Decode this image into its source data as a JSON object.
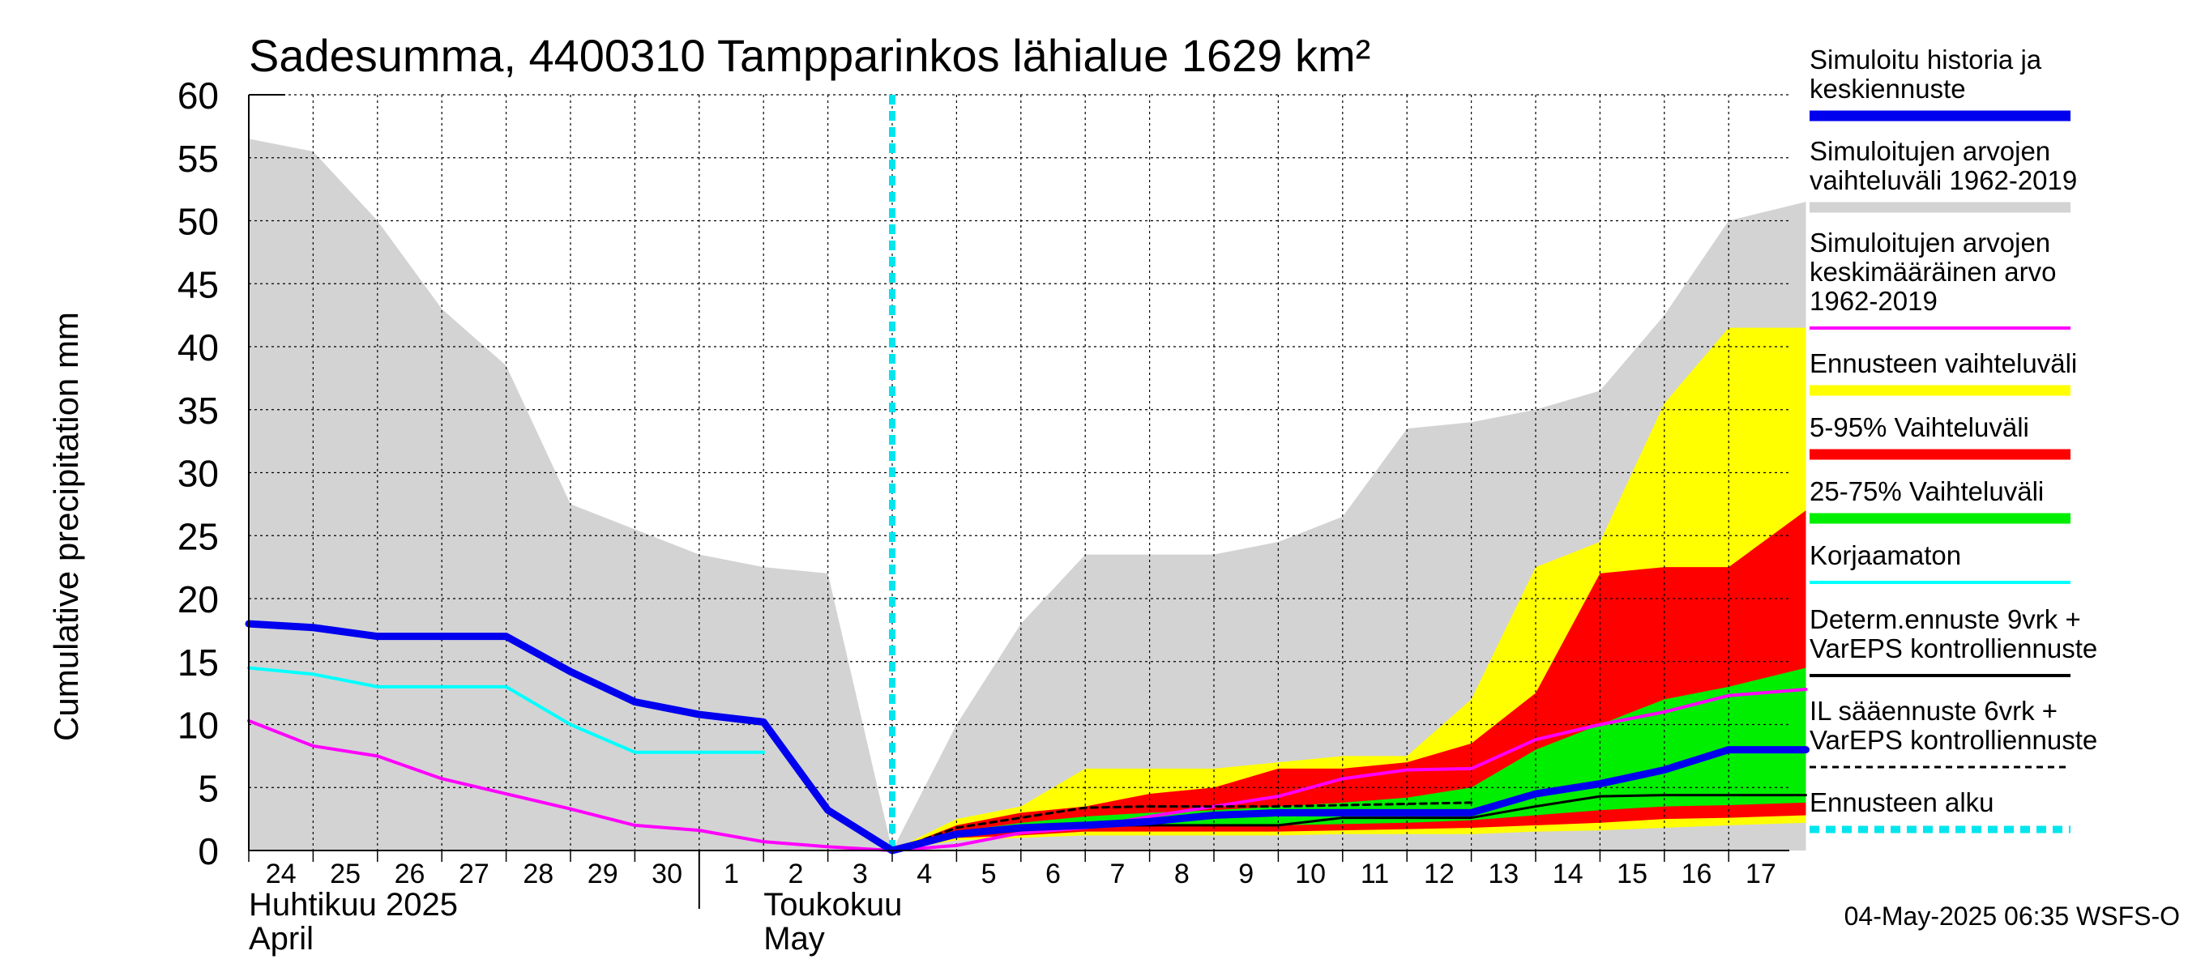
{
  "chart_data": {
    "type": "area",
    "title": "Sadesumma, 4400310 Tampparinkos lähialue 1629 km²",
    "ylabel": "Cumulative precipitation   mm",
    "ylim": [
      0,
      60
    ],
    "yticks": [
      0,
      5,
      10,
      15,
      20,
      25,
      30,
      35,
      40,
      45,
      50,
      55,
      60
    ],
    "xlim": [
      0,
      24.2
    ],
    "categories": [
      "24",
      "25",
      "26",
      "27",
      "28",
      "29",
      "30",
      "1",
      "2",
      "3",
      "4",
      "5",
      "6",
      "7",
      "8",
      "9",
      "10",
      "11",
      "12",
      "13",
      "14",
      "15",
      "16",
      "17"
    ],
    "month_labels": [
      {
        "line1": "Huhtikuu  2025",
        "line2": "April"
      },
      {
        "line1": "Toukokuu",
        "line2": "May"
      }
    ],
    "forecast_start": 10,
    "grid": true,
    "legend_position": "right",
    "series": [
      {
        "name": "Simuloitujen arvojen vaihteluväli 1962-2019",
        "type": "band",
        "color": "#d3d3d3",
        "x": [
          0,
          1,
          2,
          3,
          4,
          5,
          6,
          7,
          8,
          9,
          10,
          11,
          12,
          13,
          14,
          15,
          16,
          17,
          18,
          19,
          20,
          21,
          22,
          23,
          24.2
        ],
        "upper": [
          56.5,
          55.5,
          50,
          43,
          38.5,
          27.5,
          25.5,
          23.5,
          22.5,
          22,
          0,
          10,
          18,
          23.5,
          23.5,
          23.5,
          24.5,
          26.5,
          33.5,
          34,
          35,
          36.5,
          42.5,
          50,
          51.5
        ],
        "lower": [
          0,
          0,
          0,
          0,
          0,
          0,
          0,
          0,
          0,
          0,
          0,
          0,
          0,
          0,
          0,
          0,
          0,
          0,
          0,
          0,
          0,
          0,
          0,
          0,
          0
        ]
      },
      {
        "name": "Ennusteen vaihteluväli",
        "type": "band",
        "color": "#ffff00",
        "x": [
          10,
          11,
          12,
          13,
          14,
          15,
          16,
          17,
          18,
          19,
          20,
          21,
          22,
          23,
          24.2
        ],
        "upper": [
          0,
          2.5,
          3.5,
          6.5,
          6.5,
          6.5,
          7,
          7.5,
          7.5,
          12,
          22.5,
          24.5,
          35.5,
          41.5,
          41.5
        ],
        "lower": [
          0,
          0.8,
          1,
          1.2,
          1.2,
          1.2,
          1.2,
          1.3,
          1.3,
          1.3,
          1.5,
          1.6,
          1.8,
          2,
          2.2
        ]
      },
      {
        "name": "5-95% Vaihteluväli",
        "type": "band",
        "color": "#ff0000",
        "x": [
          10,
          11,
          12,
          13,
          14,
          15,
          16,
          17,
          18,
          19,
          20,
          21,
          22,
          23,
          24.2
        ],
        "upper": [
          0,
          2,
          3,
          3.5,
          4.5,
          5,
          6.5,
          6.5,
          7,
          8.5,
          12.5,
          22,
          22.5,
          22.5,
          27
        ],
        "lower": [
          0,
          1,
          1.2,
          1.5,
          1.5,
          1.5,
          1.5,
          1.6,
          1.7,
          1.8,
          2,
          2.2,
          2.5,
          2.6,
          2.8
        ]
      },
      {
        "name": "25-75% Vaihteluväli",
        "type": "band",
        "color": "#00ee00",
        "x": [
          10,
          11,
          12,
          13,
          14,
          15,
          16,
          17,
          18,
          19,
          20,
          21,
          22,
          23,
          24.2
        ],
        "upper": [
          0,
          1.5,
          2.2,
          2.7,
          3,
          3.2,
          3.5,
          3.8,
          4.2,
          5,
          8,
          10,
          12,
          13,
          14.5
        ],
        "lower": [
          0,
          1.2,
          1.5,
          1.8,
          2,
          2,
          2,
          2.1,
          2.2,
          2.4,
          2.8,
          3.2,
          3.5,
          3.6,
          3.8
        ]
      },
      {
        "name": "Simuloitujen arvojen keskimääräinen arvo 1962-2019",
        "type": "line",
        "color": "#ff00ff",
        "width": 4,
        "x": [
          0,
          1,
          2,
          3,
          4,
          5,
          6,
          7,
          8,
          9,
          10,
          11,
          12,
          13,
          14,
          15,
          16,
          17,
          18,
          19,
          20,
          21,
          22,
          23,
          24.2
        ],
        "y": [
          10.3,
          8.3,
          7.5,
          5.7,
          4.5,
          3.3,
          2,
          1.6,
          0.7,
          0.3,
          0,
          0.4,
          1.4,
          1.8,
          2.7,
          3.5,
          4.3,
          5.7,
          6.4,
          6.5,
          8.8,
          10,
          11,
          12.3,
          12.8
        ]
      },
      {
        "name": "Korjaamaton",
        "type": "line",
        "color": "#00ffff",
        "width": 4,
        "x": [
          0,
          1,
          2,
          3,
          4,
          5,
          6,
          7,
          8
        ],
        "y": [
          14.5,
          14,
          13,
          13,
          13,
          10,
          7.8,
          7.8,
          7.8
        ]
      },
      {
        "name": "Determ.ennuste 9vrk + VarEPS kontrolliennuste",
        "type": "line",
        "color": "#000000",
        "width": 3,
        "x": [
          10,
          11,
          12,
          13,
          14,
          15,
          16,
          17,
          18,
          19,
          20,
          21,
          22,
          23,
          24.2
        ],
        "y": [
          0,
          1.2,
          1.6,
          2,
          2,
          2,
          2,
          2.6,
          2.6,
          2.6,
          3.5,
          4.3,
          4.4,
          4.4,
          4.4
        ]
      },
      {
        "name": "IL sääennuste 6vrk + VarEPS kontrolliennuste",
        "type": "line",
        "color": "#000000",
        "width": 3,
        "dash": true,
        "x": [
          10,
          11,
          12,
          13,
          14,
          15,
          16,
          17,
          18,
          19
        ],
        "y": [
          0,
          1.8,
          2.6,
          3.4,
          3.5,
          3.5,
          3.5,
          3.6,
          3.7,
          3.8
        ]
      },
      {
        "name": "Simuloitu historia ja keskiennuste",
        "type": "line",
        "color": "#0000ee",
        "width": 9,
        "x": [
          0,
          1,
          2,
          3,
          4,
          5,
          6,
          7,
          8,
          9,
          10,
          11,
          12,
          13,
          14,
          15,
          16,
          17,
          18,
          19,
          20,
          21,
          22,
          23,
          24.2
        ],
        "y": [
          18,
          17.7,
          17,
          17,
          17,
          14.2,
          11.8,
          10.8,
          10.2,
          3.2,
          0,
          1.3,
          1.8,
          2,
          2.3,
          2.8,
          3,
          3,
          3,
          3,
          4.5,
          5.3,
          6.4,
          8,
          8
        ]
      }
    ]
  },
  "legend": [
    {
      "lines": [
        "Simuloitu historia ja",
        "keskiennuste"
      ],
      "color": "#0000ee",
      "style": "thick"
    },
    {
      "lines": [
        "Simuloitujen arvojen",
        "vaihteluväli 1962-2019"
      ],
      "color": "#d3d3d3",
      "style": "thick"
    },
    {
      "lines": [
        "Simuloitujen arvojen",
        "keskimääräinen arvo",
        "   1962-2019"
      ],
      "color": "#ff00ff",
      "style": "thin"
    },
    {
      "lines": [
        "Ennusteen vaihteluväli"
      ],
      "color": "#ffff00",
      "style": "thick"
    },
    {
      "lines": [
        "5-95% Vaihteluväli"
      ],
      "color": "#ff0000",
      "style": "thick"
    },
    {
      "lines": [
        "25-75% Vaihteluväli"
      ],
      "color": "#00ee00",
      "style": "thick"
    },
    {
      "lines": [
        "Korjaamaton"
      ],
      "color": "#00ffff",
      "style": "thin"
    },
    {
      "lines": [
        "Determ.ennuste 9vrk +",
        "VarEPS kontrolliennuste"
      ],
      "color": "#000000",
      "style": "thin"
    },
    {
      "lines": [
        "IL sääennuste 6vrk  +",
        "  VarEPS kontrolliennuste"
      ],
      "color": "#000000",
      "style": "dashed"
    },
    {
      "lines": [
        "Ennusteen alku"
      ],
      "color": "#00e5ee",
      "style": "dotted"
    }
  ],
  "footer": "04-May-2025 06:35 WSFS-O"
}
